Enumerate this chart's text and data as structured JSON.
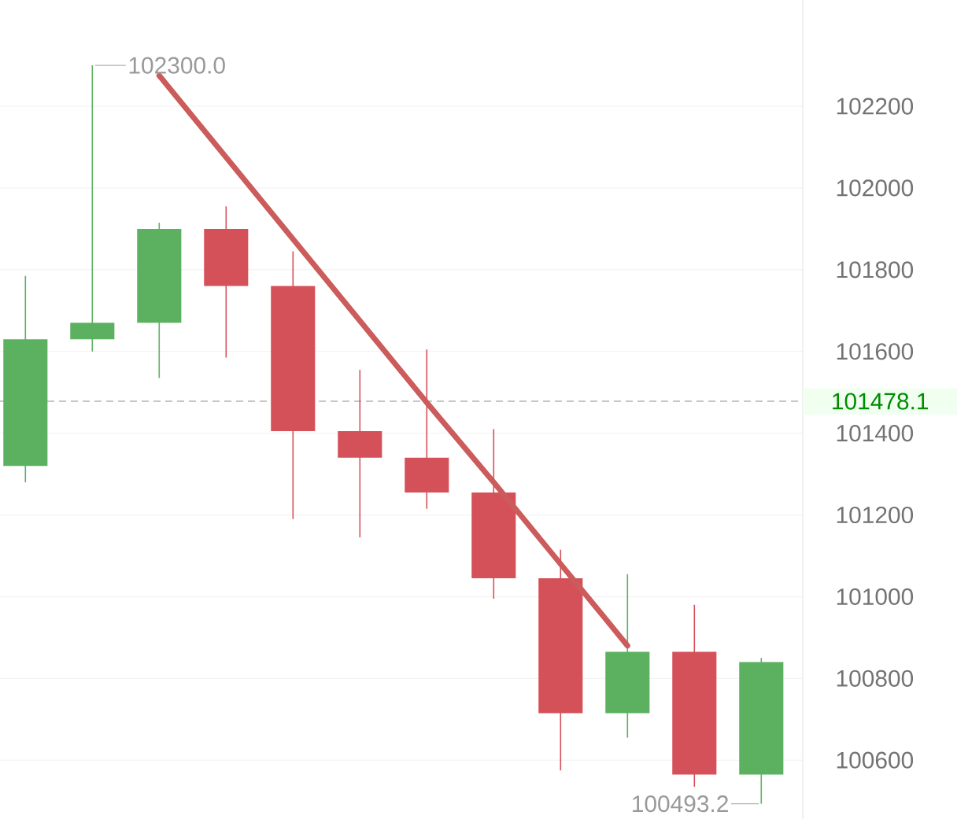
{
  "chart_data": {
    "type": "candlestick",
    "categories": [
      null,
      null,
      null,
      null,
      null,
      null,
      null,
      null,
      null,
      null,
      null,
      null
    ],
    "ohlc": [
      [
        101320,
        101785,
        101280,
        101630
      ],
      [
        101630,
        102300,
        101600,
        101670
      ],
      [
        101670,
        101915,
        101535,
        101900
      ],
      [
        101900,
        101955,
        101585,
        101760
      ],
      [
        101760,
        101845,
        101190,
        101405
      ],
      [
        101405,
        101555,
        101145,
        101340
      ],
      [
        101340,
        101605,
        101215,
        101255
      ],
      [
        101255,
        101410,
        100995,
        101045
      ],
      [
        101045,
        101115,
        100575,
        100715
      ],
      [
        100715,
        101055,
        100655,
        100865
      ],
      [
        100865,
        100980,
        100535,
        100565
      ],
      [
        100565,
        100850,
        100493.2,
        100840
      ]
    ],
    "colors": [
      "#5cb160",
      "#5cb160",
      "#5cb160",
      "#d5515a",
      "#d5515a",
      "#d5515a",
      "#d5515a",
      "#d5515a",
      "#d5515a",
      "#5cb160",
      "#d5515a",
      "#5cb160"
    ],
    "series": [
      {
        "type": "line",
        "values": [
          null,
          null,
          102275,
          102075,
          101875,
          101675,
          101475,
          101280,
          101080,
          100880,
          null,
          null
        ],
        "color": "#cc5b5b"
      }
    ],
    "ylim": [
      100456,
      102460
    ],
    "yticks": [
      100600,
      100800,
      101000,
      101200,
      101400,
      101600,
      101800,
      102000,
      102200
    ],
    "grid": "y",
    "ref_lines": [
      {
        "axis": "y",
        "value": 101478.1,
        "label": "101478.1",
        "color": "#b4b4b4",
        "line_style": "dashed"
      }
    ],
    "annotations": [
      "102300.0",
      "100493.2"
    ]
  }
}
